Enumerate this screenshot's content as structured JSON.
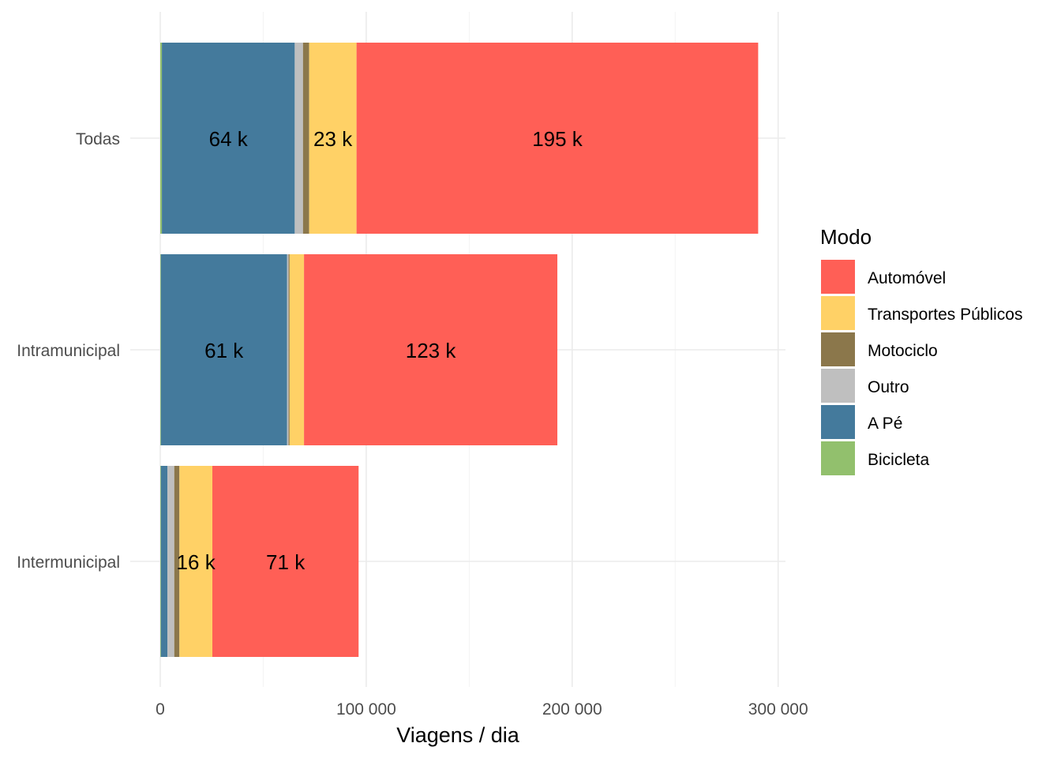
{
  "chart_data": {
    "type": "bar",
    "orientation": "horizontal",
    "stacked": true,
    "categories": [
      "Todas",
      "Intramunicipal",
      "Intermunicipal"
    ],
    "series": [
      {
        "name": "Bicicleta",
        "color": "#92C06D",
        "values": [
          800,
          300,
          300
        ]
      },
      {
        "name": "A Pé",
        "color": "#447A9C",
        "values": [
          64500,
          61300,
          3200
        ]
      },
      {
        "name": "Outro",
        "color": "#BFBFBF",
        "values": [
          4000,
          700,
          3300
        ]
      },
      {
        "name": "Motociclo",
        "color": "#8B774B",
        "values": [
          3000,
          500,
          2500
        ]
      },
      {
        "name": "Transportes Públicos",
        "color": "#FFD166",
        "values": [
          23000,
          7000,
          16000
        ]
      },
      {
        "name": "Automóvel",
        "color": "#FF5F56",
        "values": [
          195000,
          123000,
          71000
        ]
      }
    ],
    "data_labels": [
      [
        "",
        "64 k",
        "",
        "",
        "23 k",
        "195 k"
      ],
      [
        "",
        "61 k",
        "",
        "",
        "",
        "123 k"
      ],
      [
        "",
        "",
        "",
        "",
        "16 k",
        "71 k"
      ]
    ],
    "xlabel": "Viagens / dia",
    "ylabel": "",
    "xlim": [
      0,
      300000
    ],
    "x_ticks": [
      0,
      100000,
      200000,
      300000
    ],
    "x_tick_labels": [
      "0",
      "100 000",
      "200 000",
      "300 000"
    ],
    "grid": true,
    "legend": {
      "title": "Modo",
      "position": "right",
      "order": [
        "Automóvel",
        "Transportes Públicos",
        "Motociclo",
        "Outro",
        "A Pé",
        "Bicicleta"
      ]
    }
  }
}
